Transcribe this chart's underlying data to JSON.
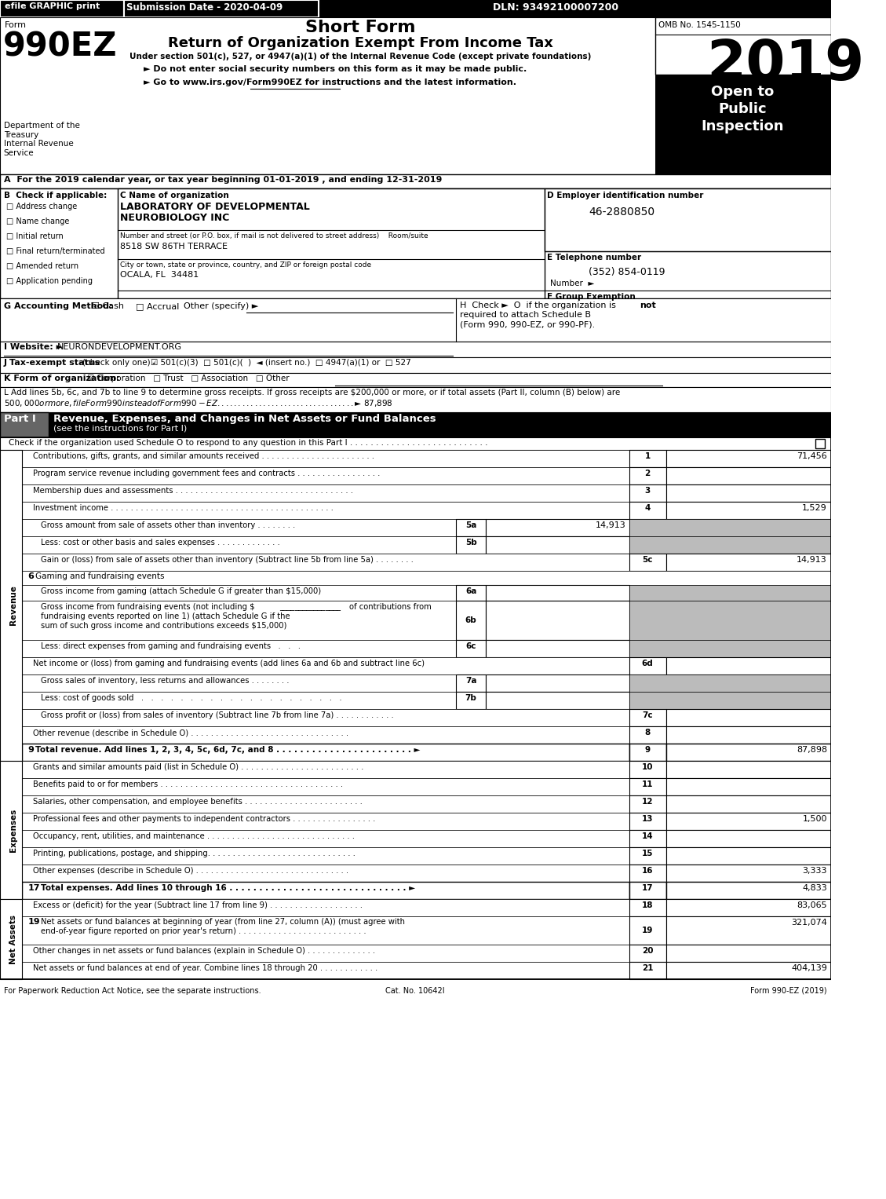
{
  "title_short": "Short Form",
  "title_long": "Return of Organization Exempt From Income Tax",
  "subtitle": "Under section 501(c), 527, or 4947(a)(1) of the Internal Revenue Code (except private foundations)",
  "year": "2019",
  "form_number": "990EZ",
  "omb": "OMB No. 1545-1150",
  "efile_text": "efile GRAPHIC print",
  "submission_date": "Submission Date - 2020-04-09",
  "dln": "DLN: 93492100007200",
  "dept_label": "Department of the\nTreasury\nInternal Revenue\nService",
  "bullet1": "► Do not enter social security numbers on this form as it may be made public.",
  "bullet2": "► Go to www.irs.gov/Form990EZ for instructions and the latest information.",
  "section_a": "A  For the 2019 calendar year, or tax year beginning 01-01-2019 , and ending 12-31-2019",
  "checkboxes_b": [
    "Address change",
    "Name change",
    "Initial return",
    "Final return/terminated",
    "Amended return",
    "Application pending"
  ],
  "org_name1": "LABORATORY OF DEVELOPMENTAL",
  "org_name2": "NEUROBIOLOGY INC",
  "street_label": "Number and street (or P.O. box, if mail is not delivered to street address)    Room/suite",
  "street": "8518 SW 86TH TERRACE",
  "city_label": "City or town, state or province, country, and ZIP or foreign postal code",
  "city": "OCALA, FL  34481",
  "ein": "46-2880850",
  "phone": "(352) 854-0119",
  "line1_desc": "Contributions, gifts, grants, and similar amounts received . . . . . . . . . . . . . . . . . . . . . . .",
  "line2_desc": "Program service revenue including government fees and contracts . . . . . . . . . . . . . . . . .",
  "line3_desc": "Membership dues and assessments . . . . . . . . . . . . . . . . . . . . . . . . . . . . . . . . . . . .",
  "line4_desc": "Investment income . . . . . . . . . . . . . . . . . . . . . . . . . . . . . . . . . . . . . . . . . . . . .",
  "line5a_desc": "Gross amount from sale of assets other than inventory . . . . . . . .",
  "line5b_desc": "Less: cost or other basis and sales expenses . . . . . . . . . . . . .",
  "line5c_desc": "Gain or (loss) from sale of assets other than inventory (Subtract line 5b from line 5a) . . . . . . . .",
  "line6_desc": "Gaming and fundraising events",
  "line6a_desc": "Gross income from gaming (attach Schedule G if greater than $15,000)",
  "line6c_desc": "Less: direct expenses from gaming and fundraising events   .   .   .",
  "line6d_desc": "Net income or (loss) from gaming and fundraising events (add lines 6a and 6b and subtract line 6c)",
  "line7a_desc": "Gross sales of inventory, less returns and allowances . . . . . . . .",
  "line7b_desc": "Less: cost of goods sold   .   .   .   .   .   .   .   .   .   .   .   .   .   .   .   .   .   .   .   .   .",
  "line7c_desc": "Gross profit or (loss) from sales of inventory (Subtract line 7b from line 7a) . . . . . . . . . . . .",
  "line8_desc": "Other revenue (describe in Schedule O) . . . . . . . . . . . . . . . . . . . . . . . . . . . . . . . .",
  "line9_desc": "Total revenue. Add lines 1, 2, 3, 4, 5c, 6d, 7c, and 8 . . . . . . . . . . . . . . . . . . . . . . . ►",
  "line10_desc": "Grants and similar amounts paid (list in Schedule O) . . . . . . . . . . . . . . . . . . . . . . . . .",
  "line11_desc": "Benefits paid to or for members . . . . . . . . . . . . . . . . . . . . . . . . . . . . . . . . . . . . .",
  "line12_desc": "Salaries, other compensation, and employee benefits . . . . . . . . . . . . . . . . . . . . . . . .",
  "line13_desc": "Professional fees and other payments to independent contractors . . . . . . . . . . . . . . . . .",
  "line14_desc": "Occupancy, rent, utilities, and maintenance . . . . . . . . . . . . . . . . . . . . . . . . . . . . . .",
  "line15_desc": "Printing, publications, postage, and shipping. . . . . . . . . . . . . . . . . . . . . . . . . . . . . .",
  "line16_desc": "Other expenses (describe in Schedule O) . . . . . . . . . . . . . . . . . . . . . . . . . . . . . . .",
  "line17_desc": "Total expenses. Add lines 10 through 16 . . . . . . . . . . . . . . . . . . . . . . . . . . . . . . ►",
  "line18_desc": "Excess or (deficit) for the year (Subtract line 17 from line 9) . . . . . . . . . . . . . . . . . . .",
  "line19a_desc": "Net assets or fund balances at beginning of year (from line 27, column (A)) (must agree with",
  "line19b_desc": "end-of-year figure reported on prior year's return) . . . . . . . . . . . . . . . . . . . . . . . . . .",
  "line20_desc": "Other changes in net assets or fund balances (explain in Schedule O) . . . . . . . . . . . . . .",
  "line21_desc": "Net assets or fund balances at end of year. Combine lines 18 through 20 . . . . . . . . . . . .",
  "footer_left": "For Paperwork Reduction Act Notice, see the separate instructions.",
  "footer_cat": "Cat. No. 10642I",
  "footer_right": "Form 990-EZ (2019)",
  "line_values": {
    "1": "71,456",
    "2": "",
    "3": "",
    "4": "1,529",
    "5a": "14,913",
    "5b": "",
    "5c": "14,913",
    "6a": "",
    "6b": "",
    "6c": "",
    "6d": "",
    "7a": "",
    "7b": "",
    "7c": "",
    "8": "",
    "9": "87,898",
    "10": "",
    "11": "",
    "12": "",
    "13": "1,500",
    "14": "",
    "15": "",
    "16": "3,333",
    "17": "4,833",
    "18": "83,065",
    "19": "321,074",
    "20": "",
    "21": "404,139"
  }
}
